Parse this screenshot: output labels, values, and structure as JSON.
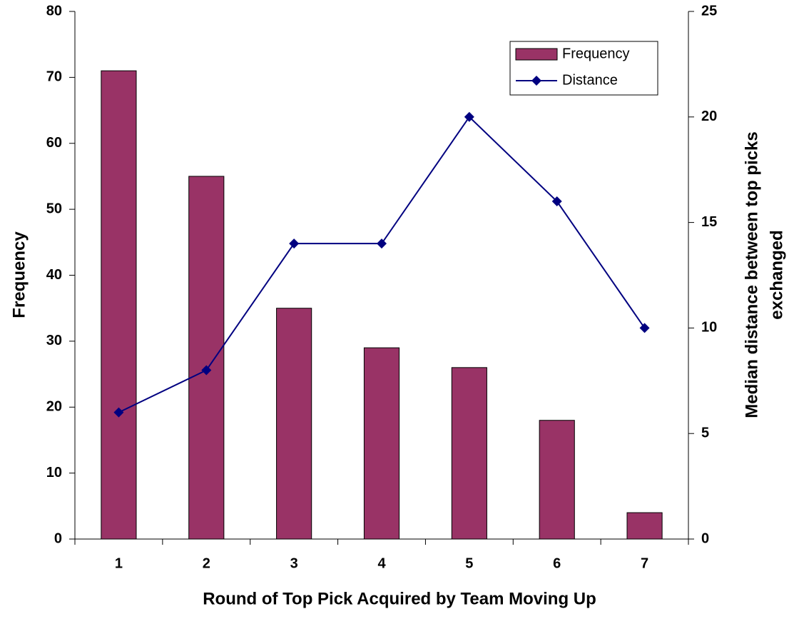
{
  "chart_data": {
    "type": "bar",
    "categories": [
      "1",
      "2",
      "3",
      "4",
      "5",
      "6",
      "7"
    ],
    "series": [
      {
        "name": "Frequency",
        "type": "bar",
        "color": "#993366",
        "values": [
          71,
          55,
          35,
          29,
          26,
          18,
          4
        ]
      },
      {
        "name": "Distance",
        "type": "line",
        "color": "#000080",
        "axis": "y2",
        "values": [
          6,
          8,
          14,
          14,
          20,
          16,
          10
        ]
      }
    ],
    "xlabel": "Round of Top Pick Acquired by Team Moving Up",
    "ylabel": "Frequency",
    "y2label": [
      "Median distance between top picks",
      "exchanged"
    ],
    "ylim": [
      0,
      80
    ],
    "yticks": [
      0,
      10,
      20,
      30,
      40,
      50,
      60,
      70,
      80
    ],
    "y2lim": [
      0,
      25
    ],
    "y2ticks": [
      0,
      5,
      10,
      15,
      20,
      25
    ],
    "grid": false,
    "legend": "upper right"
  }
}
